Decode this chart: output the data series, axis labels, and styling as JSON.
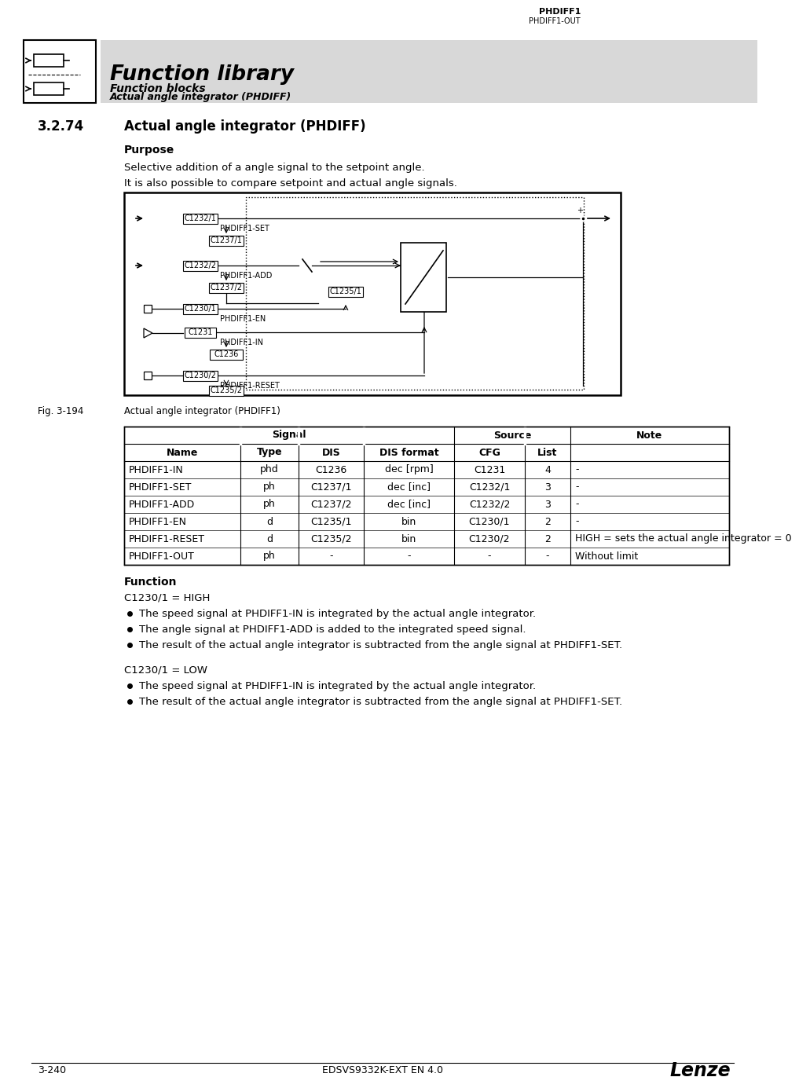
{
  "page_bg": "#ffffff",
  "header_bg": "#d8d8d8",
  "header_title": "Function library",
  "header_sub1": "Function blocks",
  "header_sub2": "Actual angle integrator (PHDIFF)",
  "section_number": "3.2.74",
  "section_title": "Actual angle integrator (PHDIFF)",
  "purpose_label": "Purpose",
  "purpose_text1": "Selective addition of a angle signal to the setpoint angle.",
  "purpose_text2": "It is also possible to compare setpoint and actual angle signals.",
  "fig_label": "Fig. 3-194",
  "fig_caption": "Actual angle integrator (PHDIFF1)",
  "function_label": "Function",
  "c1230_high": "C1230/1 = HIGH",
  "bullet1_high": "The speed signal at PHDIFF1-IN is integrated by the actual angle integrator.",
  "bullet2_high": "The angle signal at PHDIFF1-ADD is added to the integrated speed signal.",
  "bullet3_high": "The result of the actual angle integrator is subtracted from the angle signal at PHDIFF1-SET.",
  "c1230_low": "C1230/1 = LOW",
  "bullet1_low": "The speed signal at PHDIFF1-IN is integrated by the actual angle integrator.",
  "bullet2_low": "The result of the actual angle integrator is subtracted from the angle signal at PHDIFF1-SET.",
  "footer_left": "3-240",
  "footer_center": "EDSVS9332K-EXT EN 4.0",
  "table_rows": [
    [
      "PHDIFF1-IN",
      "phd",
      "C1236",
      "dec [rpm]",
      "C1231",
      "4",
      "-"
    ],
    [
      "PHDIFF1-SET",
      "ph",
      "C1237/1",
      "dec [inc]",
      "C1232/1",
      "3",
      "-"
    ],
    [
      "PHDIFF1-ADD",
      "ph",
      "C1237/2",
      "dec [inc]",
      "C1232/2",
      "3",
      "-"
    ],
    [
      "PHDIFF1-EN",
      "d",
      "C1235/1",
      "bin",
      "C1230/1",
      "2",
      "-"
    ],
    [
      "PHDIFF1-RESET",
      "d",
      "C1235/2",
      "bin",
      "C1230/2",
      "2",
      "HIGH = sets the actual angle integrator = 0"
    ],
    [
      "PHDIFF1-OUT",
      "ph",
      "-",
      "-",
      "-",
      "-",
      "Without limit"
    ]
  ]
}
